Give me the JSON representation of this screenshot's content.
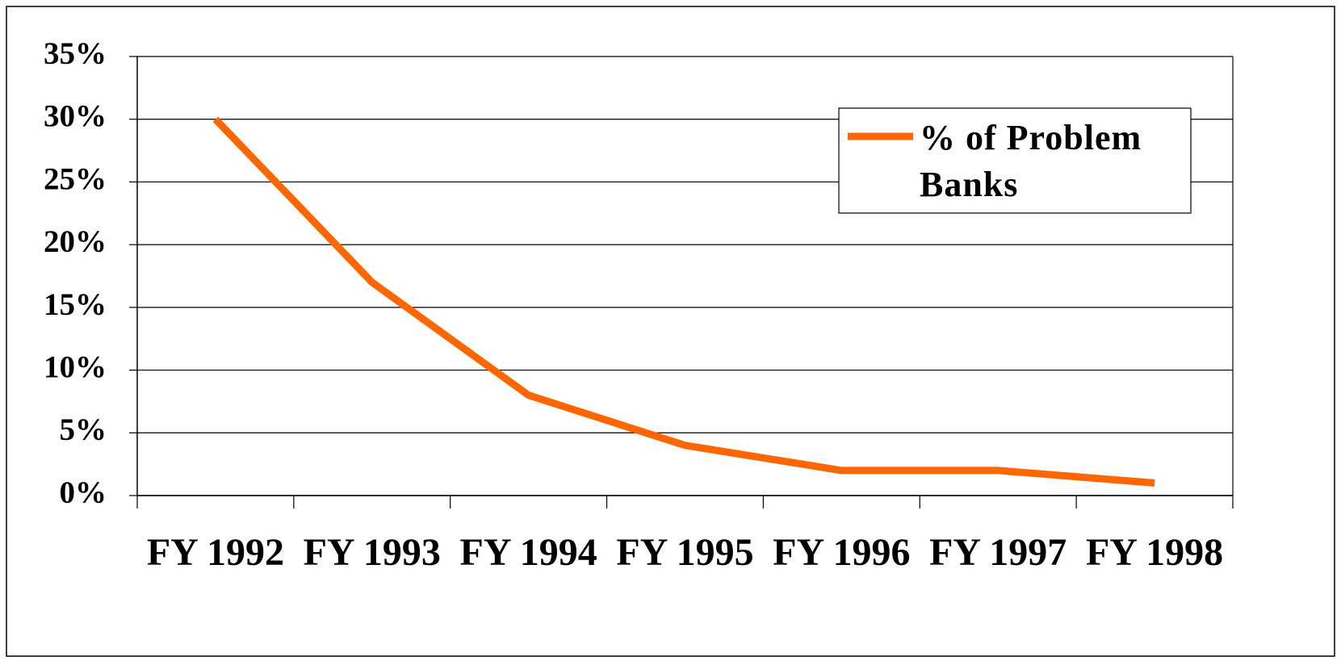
{
  "chart_data": {
    "type": "line",
    "categories": [
      "FY 1992",
      "FY 1993",
      "FY 1994",
      "FY 1995",
      "FY 1996",
      "FY 1997",
      "FY 1998"
    ],
    "series": [
      {
        "name": "% of Problem Banks",
        "color": "#ff6600",
        "values": [
          30,
          17,
          8,
          4,
          2,
          2,
          1
        ]
      }
    ],
    "ylim": [
      0,
      35
    ],
    "yticks": [
      {
        "value": 0,
        "label": "0%"
      },
      {
        "value": 5,
        "label": "5%"
      },
      {
        "value": 10,
        "label": "10%"
      },
      {
        "value": 15,
        "label": "15%"
      },
      {
        "value": 20,
        "label": "20%"
      },
      {
        "value": 25,
        "label": "25%"
      },
      {
        "value": 30,
        "label": "30%"
      },
      {
        "value": 35,
        "label": "35%"
      }
    ],
    "grid": true,
    "legend": "upper right"
  }
}
